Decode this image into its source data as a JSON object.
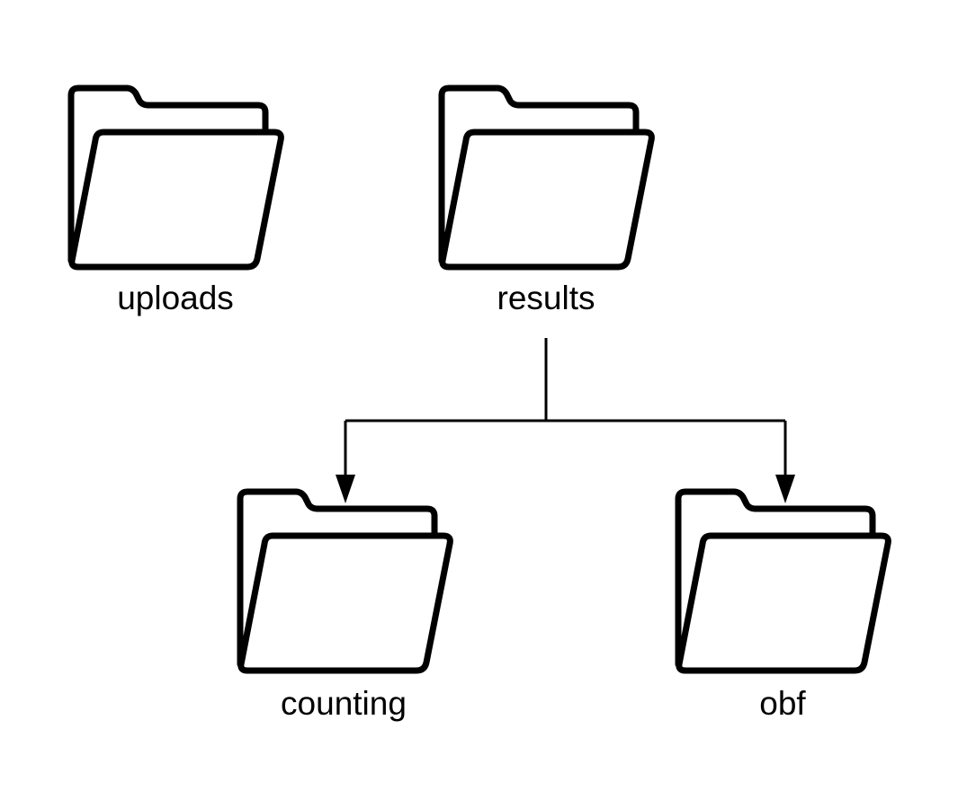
{
  "diagram": {
    "folders": {
      "uploads": {
        "label": "uploads",
        "icon": "folder-icon"
      },
      "results": {
        "label": "results",
        "icon": "folder-icon"
      },
      "counting": {
        "label": "counting",
        "icon": "folder-icon"
      },
      "obf": {
        "label": "obf",
        "icon": "folder-icon"
      }
    },
    "edges": [
      {
        "from": "results",
        "to": "counting"
      },
      {
        "from": "results",
        "to": "obf"
      }
    ],
    "colors": {
      "stroke": "#000000",
      "folder_fill": "#ffffff",
      "background": "#ffffff"
    }
  }
}
